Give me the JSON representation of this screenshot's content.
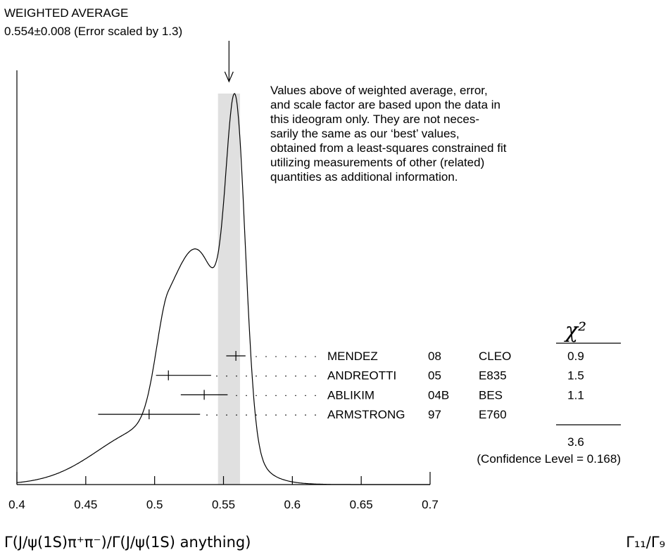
{
  "chart_data": {
    "type": "ideogram",
    "title": "WEIGHTED AVERAGE",
    "subtitle": "0.554±0.008 (Error scaled by 1.3)",
    "average": 0.554,
    "average_error": 0.008,
    "note": [
      "Values above of weighted average, error,",
      "and scale factor are based upon the data in",
      "this ideogram only.  They are not neces-",
      "sarily the same as our ‘best’ values,",
      "obtained from a least-squares constrained fit",
      "utilizing measurements of other (related)",
      "quantities as additional information."
    ],
    "chi2_header": "χ²",
    "measurements": [
      {
        "name": "MENDEZ",
        "year": "08",
        "experiment": "CLEO",
        "value": 0.559,
        "errors": [
          0.007,
          0.007
        ],
        "chi2": 0.9
      },
      {
        "name": "ANDREOTTI",
        "year": "05",
        "experiment": "E835",
        "value": 0.51,
        "errors": [
          0.009,
          0.031
        ],
        "chi2": 1.5
      },
      {
        "name": "ABLIKIM",
        "year": "04B",
        "experiment": "BES",
        "value": 0.536,
        "errors": [
          0.017,
          0.017
        ],
        "chi2": 1.1
      },
      {
        "name": "ARMSTRONG",
        "year": "97",
        "experiment": "E760",
        "value": 0.496,
        "errors": [
          0.037,
          0.037
        ],
        "chi2": null
      }
    ],
    "chi2_total": 3.6,
    "confidence": "(Confidence Level = 0.168)",
    "xlim": [
      0.4,
      0.7
    ],
    "xticks": [
      0.4,
      0.45,
      0.5,
      0.55,
      0.6,
      0.65,
      0.7
    ],
    "xlabel": "Γ(J/ψ(1S)π⁺π⁻)/Γ(J/ψ(1S) anything)",
    "ratio_label": "Γ₁₁/Γ₉"
  }
}
